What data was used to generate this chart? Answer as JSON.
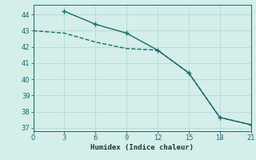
{
  "xlabel": "Humidex (Indice chaleur)",
  "ylabel": "",
  "bg_color": "#d4eeea",
  "line_color": "#1a6b6b",
  "line1_x": [
    3,
    6,
    9,
    12,
    15,
    18,
    21
  ],
  "line1_y": [
    44.2,
    43.4,
    42.85,
    41.8,
    40.4,
    37.65,
    37.2
  ],
  "line2_x": [
    0,
    3,
    6,
    9,
    12,
    15,
    18,
    21
  ],
  "line2_y": [
    43.0,
    42.85,
    42.3,
    41.9,
    41.8,
    40.4,
    37.65,
    37.2
  ],
  "xlim": [
    0,
    21
  ],
  "ylim": [
    36.8,
    44.6
  ],
  "xticks": [
    0,
    3,
    6,
    9,
    12,
    15,
    18,
    21
  ],
  "yticks": [
    37,
    38,
    39,
    40,
    41,
    42,
    43,
    44
  ],
  "grid_color": "#b8ddd8",
  "markersize": 3,
  "linewidth": 1.0
}
